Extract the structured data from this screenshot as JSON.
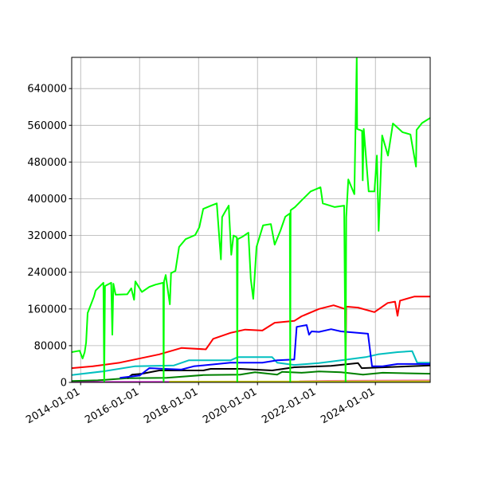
{
  "chart_data": {
    "type": "line",
    "title": "",
    "xlabel": "",
    "ylabel": "",
    "xlim": [
      "2013-09-12",
      "2025-11-10"
    ],
    "ylim": [
      0,
      708000
    ],
    "grid": true,
    "x_ticks": [
      "2014-01-01",
      "2016-01-01",
      "2018-01-01",
      "2020-01-01",
      "2022-01-01",
      "2024-01-01"
    ],
    "y_ticks": [
      0,
      80000,
      160000,
      240000,
      320000,
      400000,
      480000,
      560000,
      640000
    ],
    "series": [
      {
        "color": "#00ff00",
        "points": [
          [
            "2013-09-12",
            66000
          ],
          [
            "2013-12-20",
            69000
          ],
          [
            "2014-01-25",
            52000
          ],
          [
            "2014-02-20",
            66000
          ],
          [
            "2014-03-10",
            87000
          ],
          [
            "2014-03-28",
            151000
          ],
          [
            "2014-06-15",
            187000
          ],
          [
            "2014-07-05",
            200000
          ],
          [
            "2014-10-10",
            217000
          ],
          [
            "2014-10-20",
            0
          ],
          [
            "2014-10-30",
            210000
          ],
          [
            "2015-01-15",
            217000
          ],
          [
            "2015-01-28",
            104000
          ],
          [
            "2015-02-10",
            215000
          ],
          [
            "2015-03-10",
            191000
          ],
          [
            "2015-08-01",
            192000
          ],
          [
            "2015-09-20",
            205000
          ],
          [
            "2015-10-25",
            180000
          ],
          [
            "2015-11-10",
            220000
          ],
          [
            "2016-01-30",
            197000
          ],
          [
            "2016-05-01",
            208000
          ],
          [
            "2016-07-15",
            213000
          ],
          [
            "2016-10-20",
            217000
          ],
          [
            "2016-10-25",
            0
          ],
          [
            "2016-10-30",
            220000
          ],
          [
            "2016-11-20",
            234000
          ],
          [
            "2017-01-10",
            170000
          ],
          [
            "2017-01-25",
            238000
          ],
          [
            "2017-03-20",
            243000
          ],
          [
            "2017-05-05",
            295000
          ],
          [
            "2017-07-25",
            312000
          ],
          [
            "2017-11-20",
            321000
          ],
          [
            "2018-01-10",
            338000
          ],
          [
            "2018-02-28",
            378000
          ],
          [
            "2018-06-05",
            385000
          ],
          [
            "2018-08-15",
            390000
          ],
          [
            "2018-10-05",
            268000
          ],
          [
            "2018-10-20",
            360000
          ],
          [
            "2018-11-20",
            370000
          ],
          [
            "2019-01-10",
            385000
          ],
          [
            "2019-02-10",
            278000
          ],
          [
            "2019-03-10",
            320000
          ],
          [
            "2019-04-20",
            316000
          ],
          [
            "2019-04-25",
            0
          ],
          [
            "2019-05-01",
            312000
          ],
          [
            "2019-07-05",
            318000
          ],
          [
            "2019-09-10",
            326000
          ],
          [
            "2019-10-10",
            225000
          ],
          [
            "2019-11-10",
            182000
          ],
          [
            "2019-12-20",
            295000
          ],
          [
            "2020-03-10",
            342000
          ],
          [
            "2020-06-15",
            345000
          ],
          [
            "2020-08-01",
            300000
          ],
          [
            "2020-10-10",
            330000
          ],
          [
            "2020-12-10",
            361000
          ],
          [
            "2021-02-05",
            368000
          ],
          [
            "2021-02-10",
            0
          ],
          [
            "2021-02-15",
            375000
          ],
          [
            "2021-04-10",
            382000
          ],
          [
            "2021-07-15",
            399000
          ],
          [
            "2021-10-20",
            416000
          ],
          [
            "2022-02-20",
            425000
          ],
          [
            "2022-03-20",
            390000
          ],
          [
            "2022-08-15",
            382000
          ],
          [
            "2022-12-10",
            385000
          ],
          [
            "2022-12-28",
            0
          ],
          [
            "2023-01-05",
            360000
          ],
          [
            "2023-01-30",
            442000
          ],
          [
            "2023-04-15",
            410000
          ],
          [
            "2023-05-15",
            708000
          ],
          [
            "2023-05-20",
            552000
          ],
          [
            "2023-07-20",
            548000
          ],
          [
            "2023-07-28",
            440000
          ],
          [
            "2023-08-10",
            552000
          ],
          [
            "2023-10-10",
            416000
          ],
          [
            "2023-12-20",
            416000
          ],
          [
            "2024-01-20",
            494000
          ],
          [
            "2024-02-10",
            330000
          ],
          [
            "2024-03-25",
            538000
          ],
          [
            "2024-06-05",
            494000
          ],
          [
            "2024-08-05",
            564000
          ],
          [
            "2024-12-01",
            545000
          ],
          [
            "2025-03-10",
            540000
          ],
          [
            "2025-05-18",
            470000
          ],
          [
            "2025-05-25",
            550000
          ],
          [
            "2025-08-01",
            565000
          ],
          [
            "2025-11-10",
            576000
          ]
        ]
      },
      {
        "color": "#ff0000",
        "points": [
          [
            "2013-09-12",
            31000
          ],
          [
            "2014-06-01",
            35000
          ],
          [
            "2015-05-01",
            43000
          ],
          [
            "2016-09-01",
            61000
          ],
          [
            "2017-06-01",
            75000
          ],
          [
            "2018-04-01",
            72000
          ],
          [
            "2018-07-01",
            95000
          ],
          [
            "2019-02-01",
            108000
          ],
          [
            "2019-08-01",
            115000
          ],
          [
            "2020-03-01",
            113000
          ],
          [
            "2020-08-01",
            130000
          ],
          [
            "2021-04-01",
            134000
          ],
          [
            "2021-07-01",
            144000
          ],
          [
            "2022-02-01",
            160000
          ],
          [
            "2022-08-01",
            168000
          ],
          [
            "2022-12-20",
            160000
          ],
          [
            "2022-12-28",
            40000
          ],
          [
            "2023-01-05",
            165000
          ],
          [
            "2023-06-01",
            163000
          ],
          [
            "2023-12-20",
            153000
          ],
          [
            "2024-06-01",
            173000
          ],
          [
            "2024-09-01",
            176000
          ],
          [
            "2024-10-01",
            145000
          ],
          [
            "2024-11-01",
            178000
          ],
          [
            "2025-05-01",
            187000
          ],
          [
            "2025-11-10",
            187000
          ]
        ]
      },
      {
        "color": "#0000ff",
        "points": [
          [
            "2015-05-01",
            10000
          ],
          [
            "2016-01-01",
            15000
          ],
          [
            "2016-05-01",
            31000
          ],
          [
            "2017-06-01",
            28000
          ],
          [
            "2017-11-01",
            35000
          ],
          [
            "2019-02-01",
            43000
          ],
          [
            "2020-03-01",
            43000
          ],
          [
            "2020-09-01",
            48000
          ],
          [
            "2021-04-01",
            50000
          ],
          [
            "2021-05-01",
            121000
          ],
          [
            "2021-09-01",
            125000
          ],
          [
            "2021-10-01",
            104000
          ],
          [
            "2021-11-01",
            111000
          ],
          [
            "2022-02-01",
            110000
          ],
          [
            "2022-07-01",
            116000
          ],
          [
            "2022-11-01",
            111000
          ],
          [
            "2023-10-01",
            106000
          ],
          [
            "2023-11-20",
            35000
          ],
          [
            "2024-04-01",
            35000
          ],
          [
            "2024-10-01",
            40000
          ],
          [
            "2025-11-10",
            40000
          ]
        ]
      },
      {
        "color": "#00bfbf",
        "points": [
          [
            "2013-09-12",
            16000
          ],
          [
            "2014-10-01",
            24000
          ],
          [
            "2015-11-01",
            35000
          ],
          [
            "2017-03-01",
            37000
          ],
          [
            "2017-09-01",
            48000
          ],
          [
            "2019-02-01",
            48000
          ],
          [
            "2019-05-01",
            55000
          ],
          [
            "2020-07-01",
            55000
          ],
          [
            "2020-09-01",
            43000
          ],
          [
            "2021-04-01",
            38000
          ],
          [
            "2022-02-01",
            42000
          ],
          [
            "2022-11-01",
            48000
          ],
          [
            "2023-09-01",
            55000
          ],
          [
            "2024-02-01",
            61000
          ],
          [
            "2024-10-01",
            66000
          ],
          [
            "2025-04-01",
            68000
          ],
          [
            "2025-06-01",
            43000
          ],
          [
            "2025-11-10",
            43000
          ]
        ]
      },
      {
        "color": "#000000",
        "points": [
          [
            "2015-08-01",
            9000
          ],
          [
            "2015-10-01",
            17000
          ],
          [
            "2016-02-01",
            19000
          ],
          [
            "2016-09-01",
            26000
          ],
          [
            "2018-03-01",
            26000
          ],
          [
            "2018-06-01",
            29500
          ],
          [
            "2019-06-01",
            29500
          ],
          [
            "2020-07-01",
            26000
          ],
          [
            "2021-04-01",
            33000
          ],
          [
            "2022-07-01",
            36000
          ],
          [
            "2023-06-01",
            42000
          ],
          [
            "2023-07-15",
            31000
          ],
          [
            "2024-10-01",
            34000
          ],
          [
            "2025-11-10",
            37000
          ]
        ]
      },
      {
        "color": "#008000",
        "points": [
          [
            "2013-09-12",
            3000
          ],
          [
            "2014-08-01",
            4500
          ],
          [
            "2015-08-01",
            9000
          ],
          [
            "2016-12-01",
            10000
          ],
          [
            "2018-03-01",
            16000
          ],
          [
            "2019-06-01",
            17000
          ],
          [
            "2019-12-01",
            22000
          ],
          [
            "2020-09-01",
            17000
          ],
          [
            "2020-11-01",
            23000
          ],
          [
            "2021-07-01",
            21000
          ],
          [
            "2022-02-01",
            24000
          ],
          [
            "2022-11-01",
            22000
          ],
          [
            "2023-08-01",
            17000
          ],
          [
            "2024-04-01",
            21000
          ],
          [
            "2025-11-10",
            19000
          ]
        ]
      },
      {
        "color": "#bfbf00",
        "points": [
          [
            "2017-01-01",
            1500
          ],
          [
            "2025-11-10",
            2500
          ]
        ]
      },
      {
        "color": "#ff69b4",
        "points": [
          [
            "2021-06-01",
            2500
          ],
          [
            "2022-06-01",
            3500
          ],
          [
            "2025-11-10",
            4500
          ]
        ]
      },
      {
        "color": "#bf00bf",
        "points": [
          [
            "2013-09-12",
            800
          ],
          [
            "2025-11-10",
            1200
          ]
        ]
      }
    ]
  }
}
